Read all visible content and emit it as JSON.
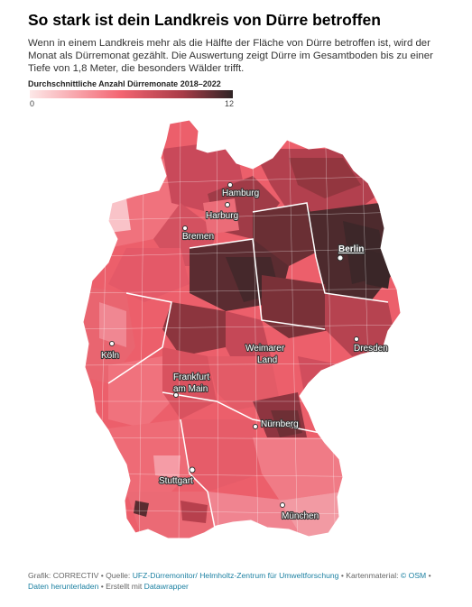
{
  "title": "So stark ist dein Landkreis von Dürre betroffen",
  "description": "Wenn in einem Landkreis mehr als die Hälfte der Fläche von Dürre betroffen ist, wird der Monat als Dürremonat gezählt. Die Auswertung zeigt Dürre im Gesamtboden bis zu einer Tiefe von 1,8 Meter, die besonders Wälder trifft.",
  "legend": {
    "title": "Durchschnittliche Anzahl Dürremonate 2018–2022",
    "min": "0",
    "max": "12",
    "colors": [
      "#fde8e8",
      "#f36471",
      "#a93c48",
      "#2f2425"
    ]
  },
  "map": {
    "cities": [
      {
        "name": "Hamburg",
        "capital": false
      },
      {
        "name": "Harburg",
        "capital": false
      },
      {
        "name": "Bremen",
        "capital": false
      },
      {
        "name": "Berlin",
        "capital": true
      },
      {
        "name": "Köln",
        "capital": false
      },
      {
        "name": "Dresden",
        "capital": false
      },
      {
        "name": "Weimarer",
        "capital": false
      },
      {
        "name": "Land",
        "capital": false
      },
      {
        "name": "Frankfurt",
        "capital": false
      },
      {
        "name": "am Main",
        "capital": false
      },
      {
        "name": "Nürnberg",
        "capital": false
      },
      {
        "name": "Stuttgart",
        "capital": false
      },
      {
        "name": "München",
        "capital": false
      }
    ]
  },
  "footer": {
    "prefix": "Grafik: CORRECTIV • Quelle: ",
    "source_link": "UFZ-Dürremonitor/ Helmholtz-Zentrum für Umweltforschung",
    "mid": " • Kartenmaterial: ",
    "osm_link": "© OSM",
    "sep": " • ",
    "download_link": "Daten herunterladen",
    "made": " • Erstellt mit ",
    "tool_link": "Datawrapper"
  }
}
